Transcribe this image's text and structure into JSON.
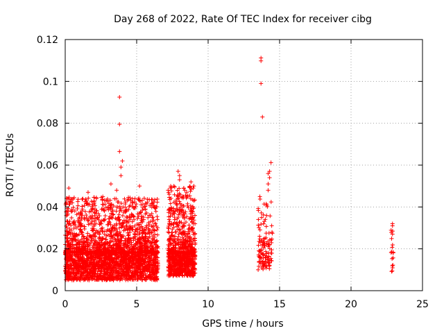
{
  "chart_data": {
    "type": "scatter",
    "title": "Day 268 of 2022, Rate Of TEC Index for receiver cibg",
    "xlabel": "GPS time / hours",
    "ylabel": "ROTI / TECUs",
    "xlim": [
      0,
      25
    ],
    "ylim": [
      0,
      0.12
    ],
    "x_ticks": [
      0,
      5,
      10,
      15,
      20,
      25
    ],
    "x_tick_labels": [
      "0",
      "5",
      "10",
      "15",
      "20",
      "25"
    ],
    "y_ticks": [
      0,
      0.02,
      0.04,
      0.06,
      0.08,
      0.1,
      0.12
    ],
    "y_tick_labels": [
      "0",
      "0.02",
      "0.04",
      "0.06",
      "0.08",
      "0.1",
      "0.12"
    ],
    "grid": true,
    "marker": "+",
    "color": "#ff0000",
    "series": [
      {
        "name": "ROTI",
        "clusters": [
          {
            "x_start": 0.0,
            "x_end": 6.5,
            "y_min": 0.005,
            "y_max": 0.045,
            "y_center": 0.018,
            "count": 2600
          },
          {
            "x_start": 7.2,
            "x_end": 9.1,
            "y_min": 0.007,
            "y_max": 0.05,
            "y_center": 0.018,
            "count": 900
          },
          {
            "x_start": 13.5,
            "x_end": 14.5,
            "y_min": 0.01,
            "y_max": 0.045,
            "y_center": 0.022,
            "count": 120
          },
          {
            "x_start": 22.8,
            "x_end": 22.95,
            "y_min": 0.009,
            "y_max": 0.032,
            "y_center": 0.018,
            "count": 18
          }
        ],
        "points": [
          [
            0.25,
            0.049
          ],
          [
            1.6,
            0.047
          ],
          [
            3.2,
            0.051
          ],
          [
            3.6,
            0.048
          ],
          [
            3.8,
            0.0925
          ],
          [
            3.8,
            0.0795
          ],
          [
            3.8,
            0.0665
          ],
          [
            4.0,
            0.062
          ],
          [
            3.9,
            0.059
          ],
          [
            3.9,
            0.055
          ],
          [
            5.2,
            0.05
          ],
          [
            7.2,
            0.048
          ],
          [
            7.9,
            0.057
          ],
          [
            8.0,
            0.055
          ],
          [
            8.0,
            0.053
          ],
          [
            8.3,
            0.049
          ],
          [
            8.5,
            0.047
          ],
          [
            8.8,
            0.052
          ],
          [
            9.0,
            0.05
          ],
          [
            13.7,
            0.1112
          ],
          [
            13.7,
            0.1098
          ],
          [
            13.7,
            0.099
          ],
          [
            13.8,
            0.083
          ],
          [
            14.4,
            0.0612
          ],
          [
            14.3,
            0.057
          ],
          [
            14.2,
            0.056
          ],
          [
            14.3,
            0.054
          ],
          [
            14.2,
            0.051
          ],
          [
            14.2,
            0.048
          ],
          [
            13.6,
            0.026
          ],
          [
            13.5,
            0.01
          ],
          [
            14.0,
            0.012
          ],
          [
            22.9,
            0.032
          ],
          [
            22.9,
            0.031
          ],
          [
            22.9,
            0.027
          ]
        ]
      }
    ]
  }
}
